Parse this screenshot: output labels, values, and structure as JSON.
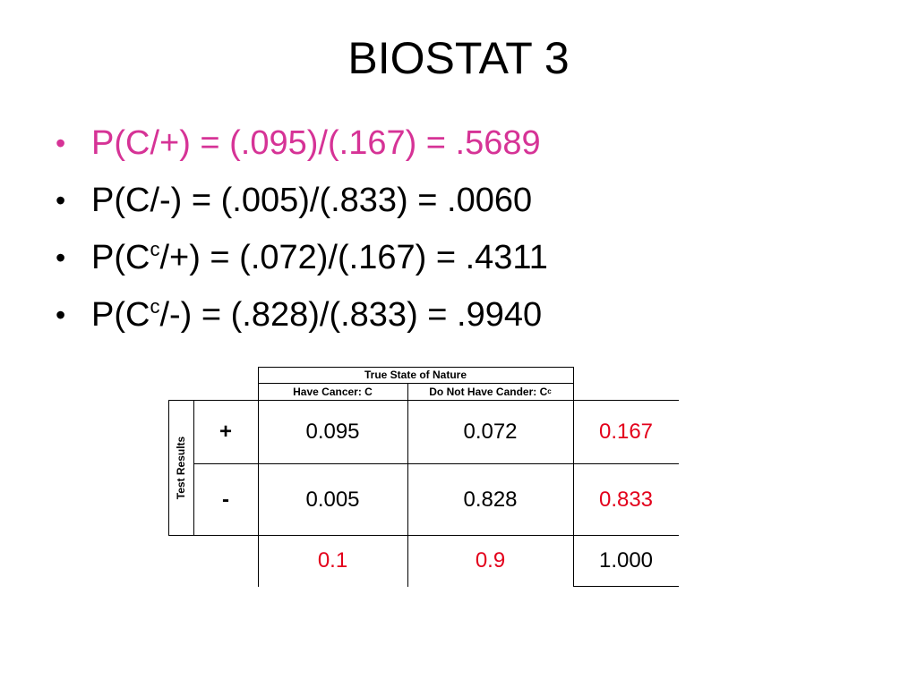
{
  "title": "BIOSTAT 3",
  "bullets": [
    {
      "pre": "P(C/+) = (.095)/(.167) = .5689",
      "sup": "",
      "post": "",
      "color": "#d63396"
    },
    {
      "pre": "P(C/-) = (.005)/(.833) = .0060",
      "sup": "",
      "post": "",
      "color": "#000000"
    },
    {
      "pre": "P(C",
      "sup": "c",
      "post": "/+) = (.072)/(.167) = .4311",
      "color": "#000000"
    },
    {
      "pre": "P(C",
      "sup": "c",
      "post": "/-) = (.828)/(.833) = .9940",
      "color": "#000000"
    }
  ],
  "bullet_symbol": "•",
  "table": {
    "top_header": "True State of Nature",
    "col1_header": "Have Cancer: C",
    "col2_header_main": "Do Not Have Cander: C",
    "col2_header_sup": "c",
    "row_group_label": "Test Results",
    "rows": [
      {
        "sign": "+",
        "c1": "0.095",
        "c2": "0.072",
        "total": "0.167"
      },
      {
        "sign": "-",
        "c1": "0.005",
        "c2": "0.828",
        "total": "0.833"
      }
    ],
    "col_totals": {
      "c1": "0.1",
      "c2": "0.9",
      "grand": "1.000"
    },
    "total_color": "#e3001b"
  }
}
